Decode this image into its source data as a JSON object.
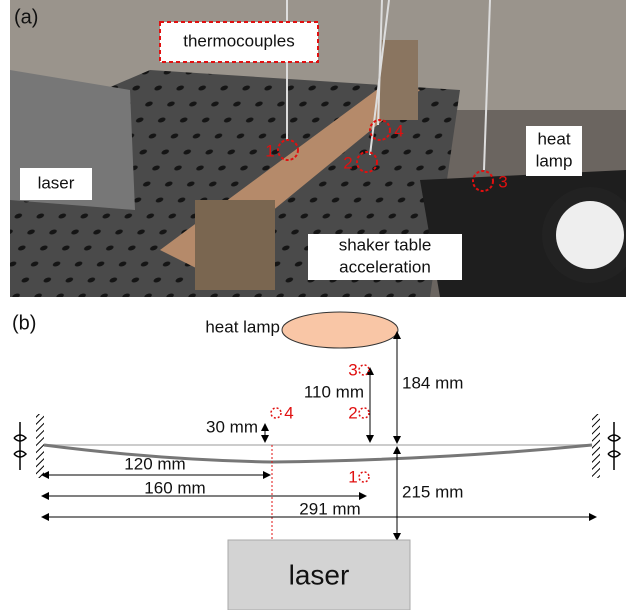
{
  "panel_a": {
    "label": "(a)",
    "callout": "thermocouples",
    "laser": "laser",
    "heat_lamp": [
      "heat",
      "lamp"
    ],
    "shaker": [
      "shaker table",
      "acceleration"
    ],
    "sensors": [
      "1",
      "2",
      "3",
      "4"
    ]
  },
  "panel_b": {
    "label": "(b)",
    "heat_lamp": "heat lamp",
    "laser": "laser",
    "sensors": [
      "1",
      "2",
      "3",
      "4"
    ],
    "dimensions": [
      "30 mm",
      "110 mm",
      "184 mm",
      "120 mm",
      "160 mm",
      "215 mm",
      "291 mm"
    ]
  }
}
